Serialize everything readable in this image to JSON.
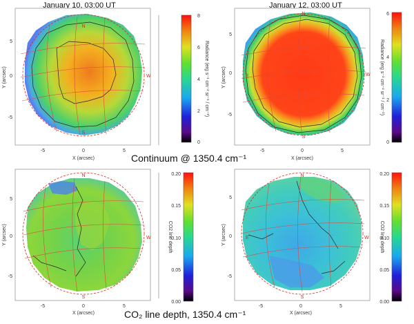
{
  "panels": [
    {
      "id": "p1",
      "title": "January 10, 03:00 UT",
      "ylabel": "Y (arcsec)",
      "xlabel": "X (arcsec)",
      "xticks": [
        "-5",
        "0",
        "5"
      ],
      "yticks": [
        "5",
        "0",
        "-5"
      ],
      "directions": {
        "north": "N",
        "south": "S",
        "west": "W",
        "east": "E"
      },
      "colorbar": {
        "label": "Radiance (erg s⁻¹ cm⁻² sr⁻¹ / cm⁻¹)",
        "ticks": [
          "8",
          "6",
          "4",
          "2",
          "0"
        ],
        "min": 0,
        "max": 8
      }
    },
    {
      "id": "p2",
      "title": "January 12, 03:00 UT",
      "ylabel": "Y (arcsec)",
      "xlabel": "X (arcsec)",
      "xticks": [
        "-5",
        "0",
        "5"
      ],
      "yticks": [
        "5",
        "0",
        "-5"
      ],
      "directions": {
        "north": "N",
        "south": "S",
        "west": "W",
        "east": "E"
      },
      "colorbar": {
        "label": "Radiance (erg s⁻¹ cm⁻² sr⁻¹ / cm⁻¹)",
        "ticks": [
          "6",
          "4",
          "2",
          "0"
        ],
        "min": 0,
        "max": 6
      }
    },
    {
      "id": "p3",
      "title": "",
      "ylabel": "Y (arcsec)",
      "xlabel": "X (arcsec)",
      "xticks": [
        "-5",
        "0",
        "5"
      ],
      "yticks": [
        "5",
        "0",
        "-5"
      ],
      "directions": {
        "north": "N",
        "south": "S",
        "west": "W",
        "east": "E"
      },
      "colorbar": {
        "label": "CO2 line depth",
        "ticks": [
          "0.20",
          "0.15",
          "0.10",
          "0.05",
          "0.00"
        ],
        "min": 0,
        "max": 0.2
      }
    },
    {
      "id": "p4",
      "title": "",
      "ylabel": "Y (arcsec)",
      "xlabel": "X (arcsec)",
      "xticks": [
        "-5",
        "0",
        "5"
      ],
      "yticks": [
        "5",
        "0",
        "-5"
      ],
      "directions": {
        "north": "N",
        "south": "S",
        "west": "W",
        "east": "E"
      },
      "colorbar": {
        "label": "CO2 line depth",
        "ticks": [
          "0.20",
          "0.15",
          "0.10",
          "0.05",
          "0.00"
        ],
        "min": 0,
        "max": 0.2
      }
    }
  ],
  "captions": {
    "continuum": "Continuum @ 1350.4 cm⁻¹",
    "co2": "CO₂ line depth, 1350.4 cm⁻¹"
  },
  "colors": {
    "grid": "#e0473a",
    "limb": "#d9281e",
    "contour": "#222222"
  }
}
